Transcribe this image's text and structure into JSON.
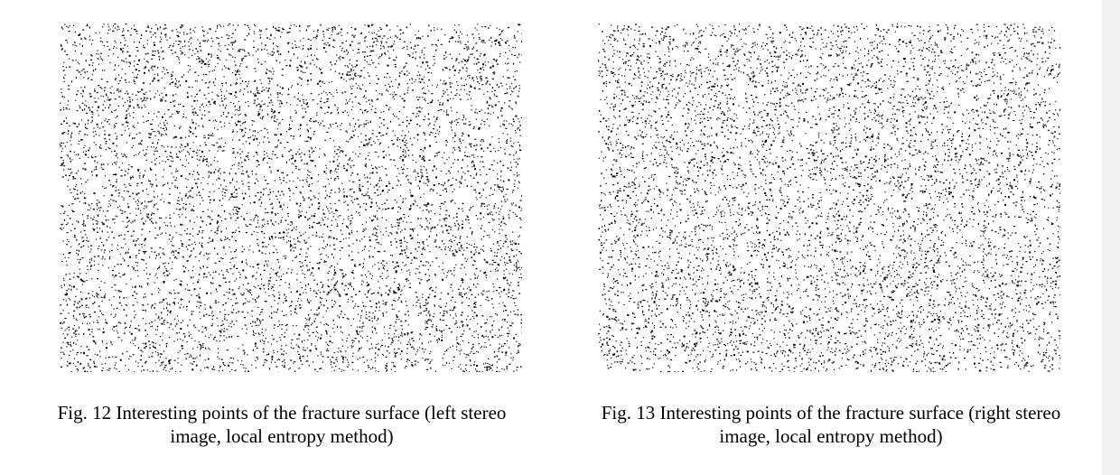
{
  "figures": [
    {
      "id": "fig12",
      "caption_line1": "Fig. 12 Interesting points of the fracture surface (left stereo",
      "caption_line2": "image, local entropy method)",
      "point_color": "#000000",
      "seed": 12
    },
    {
      "id": "fig13",
      "caption_line1": "Fig. 13 Interesting points of the fracture surface (right stereo",
      "caption_line2": "image, local entropy method)",
      "point_color": "#000000",
      "seed": 13
    }
  ],
  "background_color": "#ffffff"
}
